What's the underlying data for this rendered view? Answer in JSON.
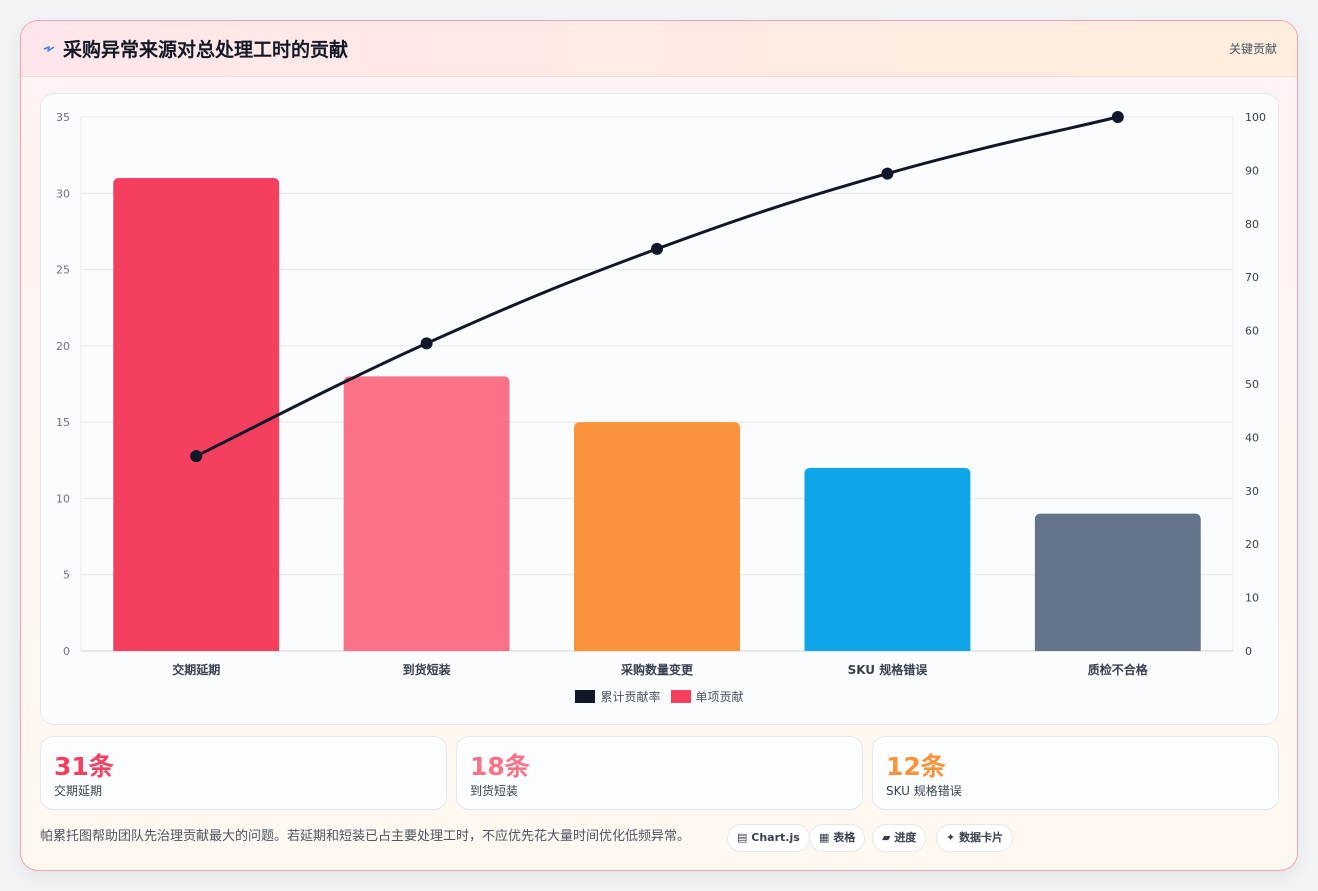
{
  "header": {
    "title": "采购异常来源对总处理工时的贡献",
    "icon": "lightning-icon",
    "link_label": "关键贡献"
  },
  "chart_data": {
    "type": "bar",
    "categories": [
      "交期延期",
      "到货短装",
      "采购数量变更",
      "SKU 规格错误",
      "质检不合格"
    ],
    "series": [
      {
        "name": "单项贡献",
        "type": "bar",
        "axis": "left",
        "values": [
          31,
          18,
          15,
          12,
          9
        ],
        "colors": [
          "#f43f5e",
          "#fb7185",
          "#fb923c",
          "#0ea5e9",
          "#64748b"
        ]
      },
      {
        "name": "累计贡献率",
        "type": "line",
        "axis": "right",
        "values": [
          36.5,
          57.6,
          75.3,
          89.4,
          100
        ],
        "color": "#0f172a"
      }
    ],
    "title": "",
    "xlabel": "",
    "ylabel": "",
    "ylim": [
      0,
      35
    ],
    "y_ticks": [
      0,
      5,
      10,
      15,
      20,
      25,
      30,
      35
    ],
    "y2lim": [
      0,
      100
    ],
    "y2_ticks": [
      0,
      10,
      20,
      30,
      40,
      50,
      60,
      70,
      80,
      90,
      100
    ],
    "grid": true,
    "legend_position": "bottom",
    "legend": [
      {
        "label": "累计贡献率",
        "color": "#0f172a"
      },
      {
        "label": "单项贡献",
        "color": "#f43f5e"
      }
    ]
  },
  "stats": [
    {
      "value": "31条",
      "label": "交期延期",
      "color": "#f43f5e"
    },
    {
      "value": "18条",
      "label": "到货短装",
      "color": "#fb7185"
    },
    {
      "value": "12条",
      "label": "SKU 规格错误",
      "color": "#fb923c"
    }
  ],
  "footer": {
    "note": "帕累托图帮助团队先治理贡献最大的问题。若延期和短装已占主要处理工时，不应优先花大量时间优化低频异常。",
    "chips": [
      {
        "label": "Chart.js",
        "icon": "chart-icon"
      },
      {
        "label": "表格",
        "icon": "table-icon"
      },
      {
        "label": "进度",
        "icon": "progress-icon"
      },
      {
        "label": "数据卡片",
        "icon": "sparkle-icon"
      }
    ]
  }
}
